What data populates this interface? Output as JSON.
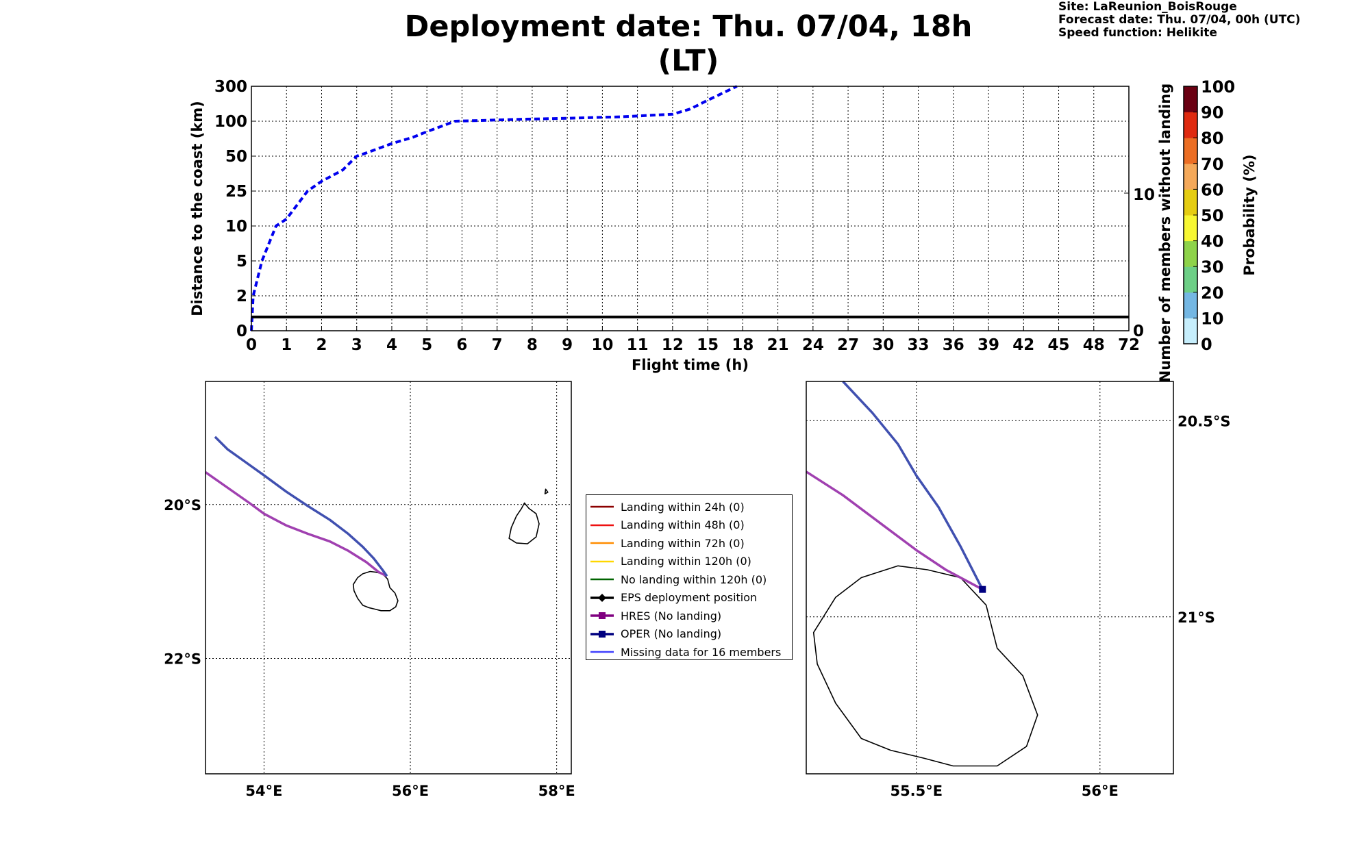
{
  "header": {
    "title": "Deployment date: Thu. 07/04, 18h (LT)",
    "site": "Site: LaReunion_BoisRouge",
    "forecast_date": "Forecast date: Thu. 07/04, 00h (UTC)",
    "speed_function": "Speed function: Helikite"
  },
  "chart_data": [
    {
      "type": "line",
      "xlabel": "Flight time (h)",
      "ylabel": "Distance to the coast (km)",
      "y2label": "Number of members without landing",
      "x_ticks": [
        "0",
        "1",
        "2",
        "3",
        "4",
        "5",
        "6",
        "7",
        "8",
        "9",
        "10",
        "11",
        "12",
        "15",
        "18",
        "21",
        "24",
        "27",
        "30",
        "33",
        "36",
        "39",
        "42",
        "45",
        "48",
        "72"
      ],
      "y_ticks": [
        "0",
        "2",
        "5",
        "10",
        "25",
        "50",
        "100",
        "300"
      ],
      "y2_ticks": [
        "0",
        "10"
      ],
      "grid": true,
      "series": [
        {
          "style": "dashed",
          "color": "#0000ee",
          "x": [
            0,
            0.05,
            0.3,
            0.7,
            1.0,
            1.6,
            2.0,
            2.6,
            3.0,
            3.3,
            4.0,
            4.6,
            5.0,
            5.8,
            6.5,
            7.5,
            9.0,
            10.5,
            12.0,
            13.5,
            15.0,
            17.5
          ],
          "y": [
            0,
            2,
            5,
            10,
            13,
            25,
            32,
            40,
            50,
            55,
            68,
            77,
            85,
            100,
            104,
            110,
            117,
            125,
            140,
            170,
            220,
            300
          ]
        },
        {
          "style": "solid",
          "color": "#000000",
          "members": 1
        }
      ],
      "colorbar": {
        "label": "Probability (%)",
        "ticks": [
          "0",
          "10",
          "20",
          "30",
          "40",
          "50",
          "60",
          "70",
          "80",
          "90",
          "100"
        ],
        "colors": [
          "#c6eefc",
          "#74b7e3",
          "#6dcf86",
          "#8ed34a",
          "#f7f733",
          "#e5cd12",
          "#f5a95a",
          "#ec6e24",
          "#df2a10",
          "#b10b0b",
          "#6a0012"
        ]
      }
    },
    {
      "type": "map",
      "lon_ticks": [
        "54°E",
        "56°E",
        "58°E"
      ],
      "lat_ticks": [
        "20°S",
        "22°S"
      ],
      "view": {
        "lon": [
          53.2,
          58.2
        ],
        "lat": [
          -23.5,
          -18.4
        ]
      },
      "tracks": [
        {
          "name": "HRES",
          "color": "#a040b0",
          "lon": [
            53.2,
            53.5,
            53.8,
            54.0,
            54.3,
            54.6,
            54.9,
            55.15,
            55.4,
            55.57,
            55.68
          ],
          "lat": [
            -19.58,
            -19.78,
            -19.98,
            -20.12,
            -20.27,
            -20.38,
            -20.48,
            -20.6,
            -20.75,
            -20.88,
            -20.93
          ]
        },
        {
          "name": "OPER",
          "color": "#4050b0",
          "lon": [
            53.33,
            53.5,
            53.75,
            54.0,
            54.3,
            54.6,
            54.9,
            55.15,
            55.35,
            55.5,
            55.62,
            55.68
          ],
          "lat": [
            -19.12,
            -19.28,
            -19.45,
            -19.62,
            -19.83,
            -20.02,
            -20.2,
            -20.38,
            -20.55,
            -20.7,
            -20.85,
            -20.93
          ]
        }
      ]
    },
    {
      "type": "map",
      "lon_ticks": [
        "55.5°E",
        "56°E"
      ],
      "lat_ticks": [
        "20.5°S",
        "21°S"
      ],
      "view": {
        "lon": [
          55.2,
          56.2
        ],
        "lat": [
          -21.4,
          -20.4
        ]
      },
      "tracks": [
        {
          "name": "HRES",
          "color": "#a040b0",
          "lon": [
            55.2,
            55.3,
            55.4,
            55.5,
            55.58,
            55.64,
            55.68
          ],
          "lat": [
            -20.63,
            -20.69,
            -20.76,
            -20.83,
            -20.88,
            -20.91,
            -20.93
          ]
        },
        {
          "name": "OPER",
          "color": "#4050b0",
          "lon": [
            55.3,
            55.38,
            55.45,
            55.5,
            55.56,
            55.62,
            55.68
          ],
          "lat": [
            -20.4,
            -20.48,
            -20.56,
            -20.64,
            -20.72,
            -20.82,
            -20.93
          ]
        }
      ],
      "oper_marker": {
        "lon": 55.68,
        "lat": -20.93,
        "color": "#000080"
      }
    }
  ],
  "legend": {
    "items": [
      {
        "label": "Landing within 24h (0)",
        "color": "#8b0000",
        "marker": "none"
      },
      {
        "label": "Landing within 48h (0)",
        "color": "#ee1111",
        "marker": "none"
      },
      {
        "label": "Landing within 72h (0)",
        "color": "#ff8c00",
        "marker": "none"
      },
      {
        "label": "Landing within 120h (0)",
        "color": "#ffd700",
        "marker": "none"
      },
      {
        "label": "No landing within 120h (0)",
        "color": "#006400",
        "marker": "none"
      },
      {
        "label": "EPS deployment position",
        "color": "#000000",
        "marker": "diamond"
      },
      {
        "label": "HRES (No landing)",
        "color": "#800080",
        "marker": "square"
      },
      {
        "label": "OPER (No landing)",
        "color": "#000080",
        "marker": "square"
      },
      {
        "label": "Missing data for 16 members",
        "color": "#4040ff",
        "marker": "none"
      }
    ]
  }
}
